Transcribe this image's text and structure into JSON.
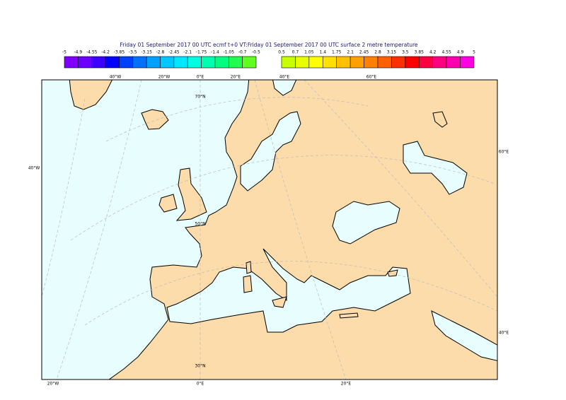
{
  "header": {
    "title": "Friday 01 September 2017 00 UTC ecmf t+0 VT:Friday 01 September 2017 00 UTC surface  2 metre temperature"
  },
  "colorbar": {
    "negative": {
      "ticks": [
        -5,
        -4.9,
        -4.55,
        -4.2,
        -3.85,
        -3.5,
        -3.15,
        -2.8,
        -2.45,
        -2.1,
        -1.75,
        -1.4,
        -1.05,
        -0.7,
        -0.5
      ],
      "colors": [
        "#8000ff",
        "#6a00ff",
        "#3c00ff",
        "#0000ff",
        "#0040ff",
        "#0070ff",
        "#00a0ff",
        "#00c8ff",
        "#00e8ff",
        "#00ffe0",
        "#00ffb0",
        "#00ff80",
        "#20ff50",
        "#60ff20"
      ]
    },
    "positive": {
      "ticks": [
        0.5,
        0.7,
        1.05,
        1.4,
        1.75,
        2.1,
        2.45,
        2.8,
        3.15,
        3.5,
        3.85,
        4.2,
        4.55,
        4.9,
        5
      ],
      "colors": [
        "#c8ff00",
        "#e8ff00",
        "#ffff00",
        "#ffe000",
        "#ffc000",
        "#ffa000",
        "#ff8000",
        "#ff6000",
        "#ff3000",
        "#ff0000",
        "#ff0040",
        "#ff0080",
        "#ff00b0",
        "#ff00e0"
      ]
    }
  },
  "map": {
    "top_labels": [
      "40°W",
      "20°W",
      "0°E",
      "20°E",
      "40°E",
      "60°E"
    ],
    "bottom_labels": [
      "20°W",
      "0°E",
      "20°E"
    ],
    "left_labels": [
      "40°W"
    ],
    "right_labels": [
      "60°E",
      "40°E"
    ],
    "lat_labels": [
      "70°N",
      "50°N",
      "30°N"
    ]
  }
}
